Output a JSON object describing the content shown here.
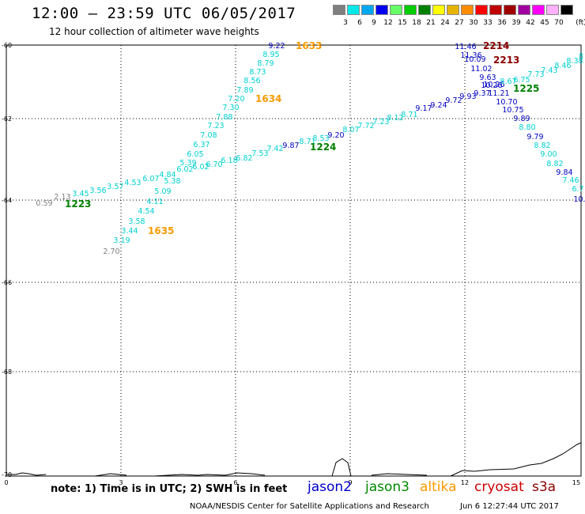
{
  "header": {
    "title": "12:00 – 23:59 UTC 06/05/2017",
    "subtitle": "12 hour collection of altimeter wave heights"
  },
  "colorbar": {
    "unit": "(ft)",
    "bins": [
      {
        "label": "3",
        "color": "#7f7f7f"
      },
      {
        "label": "6",
        "color": "#00e8e8"
      },
      {
        "label": "9",
        "color": "#00a8f0"
      },
      {
        "label": "12",
        "color": "#0000f0"
      },
      {
        "label": "15",
        "color": "#66ff66"
      },
      {
        "label": "18",
        "color": "#00cc00"
      },
      {
        "label": "21",
        "color": "#008000"
      },
      {
        "label": "24",
        "color": "#ffff00"
      },
      {
        "label": "27",
        "color": "#e6b400"
      },
      {
        "label": "30",
        "color": "#ff8c00"
      },
      {
        "label": "33",
        "color": "#ff0000"
      },
      {
        "label": "36",
        "color": "#c00000"
      },
      {
        "label": "39",
        "color": "#a00000"
      },
      {
        "label": "42",
        "color": "#a000a0"
      },
      {
        "label": "45",
        "color": "#ff00ff"
      },
      {
        "label": "70",
        "color": "#ffb0ff"
      },
      {
        "label": "",
        "color": "#000000"
      }
    ]
  },
  "axes": {
    "x_ticks": [
      "0",
      "3",
      "6",
      "9",
      "12",
      "15"
    ],
    "y_ticks": [
      "-60",
      "-62",
      "-64",
      "-66",
      "-68",
      "-70"
    ]
  },
  "tracks": [
    {
      "id": "1223",
      "color": "#008000",
      "points": [
        {
          "t": "0.59",
          "c": "#7f7f7f"
        },
        {
          "t": "2.13",
          "c": "#7f7f7f"
        },
        {
          "t": "3.45",
          "c": "#00d0d0"
        },
        {
          "t": "3.56",
          "c": "#00d0d0"
        },
        {
          "t": "3.57",
          "c": "#00d0d0"
        },
        {
          "t": "4.53",
          "c": "#00d0d0"
        },
        {
          "t": "6.07",
          "c": "#00d0d0"
        },
        {
          "t": "4.84",
          "c": "#00d0d0"
        },
        {
          "t": "6.02",
          "c": "#00d0d0"
        },
        {
          "t": "6.02",
          "c": "#00d0d0"
        },
        {
          "t": "6.70",
          "c": "#00d0d0"
        },
        {
          "t": "6.18",
          "c": "#00d0d0"
        }
      ]
    },
    {
      "id": "1224",
      "color": "#008000",
      "points": [
        {
          "t": "6.82",
          "c": "#00d0d0"
        },
        {
          "t": "7.53",
          "c": "#00d0d0"
        },
        {
          "t": "7.42",
          "c": "#00d0d0"
        },
        {
          "t": "9.87",
          "c": "#0000c0"
        },
        {
          "t": "8.71",
          "c": "#00d0d0"
        },
        {
          "t": "8.53",
          "c": "#00d0d0"
        },
        {
          "t": "9.20",
          "c": "#0000c0"
        },
        {
          "t": "8.07",
          "c": "#00d0d0"
        },
        {
          "t": "7.72",
          "c": "#00d0d0"
        },
        {
          "t": "7.23",
          "c": "#00d0d0"
        },
        {
          "t": "8.12",
          "c": "#00d0d0"
        },
        {
          "t": "8.71",
          "c": "#00d0d0"
        },
        {
          "t": "9.17",
          "c": "#0000c0"
        },
        {
          "t": "9.24",
          "c": "#0000c0"
        },
        {
          "t": "9.72",
          "c": "#0000c0"
        },
        {
          "t": "9.93",
          "c": "#0000c0"
        },
        {
          "t": "9.37",
          "c": "#0000c0"
        },
        {
          "t": "10.26",
          "c": "#0000c0"
        }
      ]
    },
    {
      "id": "1225",
      "color": "#008000",
      "points": [
        {
          "t": "8.67",
          "c": "#00d0d0"
        },
        {
          "t": "6.75",
          "c": "#00d0d0"
        },
        {
          "t": "7.73",
          "c": "#00d0d0"
        },
        {
          "t": "7.43",
          "c": "#00d0d0"
        },
        {
          "t": "8.46",
          "c": "#00d0d0"
        },
        {
          "t": "8.38",
          "c": "#00d0d0"
        },
        {
          "t": "8",
          "c": "#00d0d0"
        }
      ]
    },
    {
      "id": "1633",
      "color": "#f59a00",
      "points": [
        {
          "t": "9.22",
          "c": "#0000c0"
        },
        {
          "t": "8.95",
          "c": "#00d0d0"
        },
        {
          "t": "8.79",
          "c": "#00d0d0"
        },
        {
          "t": "8.73",
          "c": "#00d0d0"
        },
        {
          "t": "8.56",
          "c": "#00d0d0"
        },
        {
          "t": "7.89",
          "c": "#00d0d0"
        },
        {
          "t": "7.20",
          "c": "#00d0d0"
        }
      ]
    },
    {
      "id": "1634",
      "color": "#f59a00",
      "points": [
        {
          "t": "7.30",
          "c": "#00d0d0"
        },
        {
          "t": "7.88",
          "c": "#00d0d0"
        },
        {
          "t": "7.23",
          "c": "#00d0d0"
        },
        {
          "t": "7.08",
          "c": "#00d0d0"
        },
        {
          "t": "6.37",
          "c": "#00d0d0"
        },
        {
          "t": "6.05",
          "c": "#00d0d0"
        },
        {
          "t": "5.39",
          "c": "#00d0d0"
        },
        {
          "t": "5.38",
          "c": "#00d0d0"
        }
      ]
    },
    {
      "id": "1635",
      "color": "#f59a00",
      "points": [
        {
          "t": "5.09",
          "c": "#00d0d0"
        },
        {
          "t": "4.11",
          "c": "#00d0d0"
        },
        {
          "t": "4.54",
          "c": "#00d0d0"
        },
        {
          "t": "3.58",
          "c": "#00d0d0"
        },
        {
          "t": "3.44",
          "c": "#00d0d0"
        },
        {
          "t": "3.19",
          "c": "#00d0d0"
        },
        {
          "t": "2.70",
          "c": "#7f7f7f"
        }
      ]
    },
    {
      "id": "2213",
      "color": "#8b0000",
      "points": [
        {
          "t": "10.09",
          "c": "#0000c0"
        },
        {
          "t": "11.02",
          "c": "#0000c0"
        },
        {
          "t": "9.63",
          "c": "#0000c0"
        },
        {
          "t": "10.26",
          "c": "#0000c0"
        },
        {
          "t": "11.21",
          "c": "#0000c0"
        },
        {
          "t": "10.70",
          "c": "#0000c0"
        },
        {
          "t": "10.75",
          "c": "#0000c0"
        },
        {
          "t": "9.89",
          "c": "#0000c0"
        },
        {
          "t": "8.80",
          "c": "#00d0d0"
        },
        {
          "t": "9.79",
          "c": "#0000c0"
        },
        {
          "t": "8.82",
          "c": "#00d0d0"
        },
        {
          "t": "9.00",
          "c": "#00d0d0"
        },
        {
          "t": "8.82",
          "c": "#00d0d0"
        },
        {
          "t": "9.84",
          "c": "#0000c0"
        },
        {
          "t": "7.46",
          "c": "#00d0d0"
        },
        {
          "t": "6.7",
          "c": "#00d0d0"
        },
        {
          "t": "10.",
          "c": "#0000c0"
        }
      ]
    },
    {
      "id": "2214",
      "color": "#8b0000",
      "points": [
        {
          "t": "11.46",
          "c": "#0000c0"
        },
        {
          "t": "11.36",
          "c": "#0000c0"
        }
      ]
    }
  ],
  "footer": {
    "note": "note:  1) Time is in UTC;  2) SWH is in feet",
    "satellites": [
      {
        "name": "jason2",
        "color": "#0000cc"
      },
      {
        "name": "jason3",
        "color": "#008800"
      },
      {
        "name": "altika",
        "color": "#ff9900"
      },
      {
        "name": "cryosat",
        "color": "#cc0000"
      },
      {
        "name": "s3a",
        "color": "#8b0000"
      }
    ],
    "credit": "NOAA/NESDIS Center for Satellite Applications and Research",
    "timestamp": "Jun  6 12:27:44 UTC 2017"
  }
}
